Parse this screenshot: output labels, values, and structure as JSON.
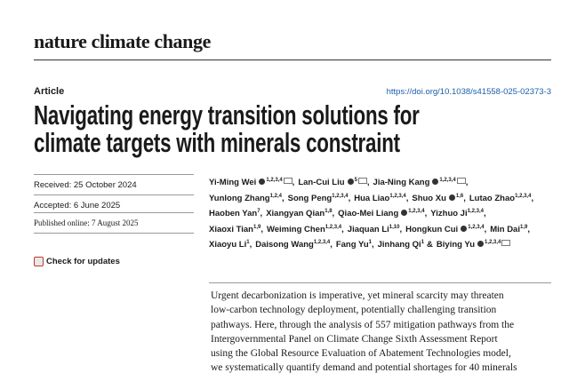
{
  "header": {
    "journal": "nature climate change",
    "article_type": "Article",
    "doi": "https://doi.org/10.1038/s41558-025-02373-3"
  },
  "title_lines": [
    "Navigating energy transition solutions for",
    "climate targets with minerals constraint"
  ],
  "dates": {
    "received": "Received: 25 October 2024",
    "accepted": "Accepted: 6 June 2025",
    "published": "Published online: 7 August 2025"
  },
  "check_updates": "Check for updates",
  "author_lines": [
    [
      {
        "name": "Yi-Ming Wei",
        "orcid": true,
        "aff": "1,2,3,4",
        "email": true,
        "sep": ","
      },
      {
        "name": "Lan-Cui Liu",
        "orcid": true,
        "aff": "5",
        "email": true,
        "sep": ","
      },
      {
        "name": "Jia-Ning Kang",
        "orcid": true,
        "aff": "1,2,3,4",
        "email": true,
        "sep": ","
      }
    ],
    [
      {
        "name": "Yunlong Zhang",
        "aff": "1,2,4",
        "sep": ","
      },
      {
        "name": "Song Peng",
        "aff": "1,2,3,4",
        "sep": ","
      },
      {
        "name": "Hua Liao",
        "aff": "1,2,3,4",
        "sep": ","
      },
      {
        "name": "Shuo Xu",
        "orcid": true,
        "aff": "1,6",
        "sep": ","
      },
      {
        "name": "Lutao Zhao",
        "aff": "1,2,3,4",
        "sep": ","
      }
    ],
    [
      {
        "name": "Haoben Yan",
        "aff": "7",
        "sep": ","
      },
      {
        "name": "Xiangyan Qian",
        "aff": "1,8",
        "sep": ","
      },
      {
        "name": "Qiao-Mei Liang",
        "orcid": true,
        "aff": "1,2,3,4",
        "sep": ","
      },
      {
        "name": "Yizhuo Ji",
        "aff": "1,2,3,4",
        "sep": ","
      }
    ],
    [
      {
        "name": "Xiaoxi Tian",
        "aff": "1,9",
        "sep": ","
      },
      {
        "name": "Weiming Chen",
        "aff": "1,2,3,4",
        "sep": ","
      },
      {
        "name": "Jiaquan Li",
        "aff": "1,10",
        "sep": ","
      },
      {
        "name": "Hongkun Cui",
        "orcid": true,
        "aff": "1,2,3,4",
        "sep": ","
      },
      {
        "name": "Min Dai",
        "aff": "1,9",
        "sep": ","
      }
    ],
    [
      {
        "name": "Xiaoyu Li",
        "aff": "1",
        "sep": ","
      },
      {
        "name": "Daisong Wang",
        "aff": "1,2,3,4",
        "sep": ","
      },
      {
        "name": "Fang Yu",
        "aff": "1",
        "sep": ","
      },
      {
        "name": "Jinhang Qi",
        "aff": "1",
        "sep": "&"
      },
      {
        "name": "Biying Yu",
        "orcid": true,
        "aff": "1,2,3,4",
        "email": true
      }
    ]
  ],
  "abstract_lines": [
    "Urgent decarbonization is imperative, yet mineral scarcity may threaten",
    "low-carbon technology deployment, potentially challenging transition",
    "pathways. Here, through the analysis of 557 mitigation pathways from the",
    "Intergovernmental Panel on Climate Change Sixth Assessment Report",
    "using the Global Resource Evaluation of Abatement Technologies model,",
    "we systematically quantify demand and potential shortages for 40 minerals"
  ]
}
